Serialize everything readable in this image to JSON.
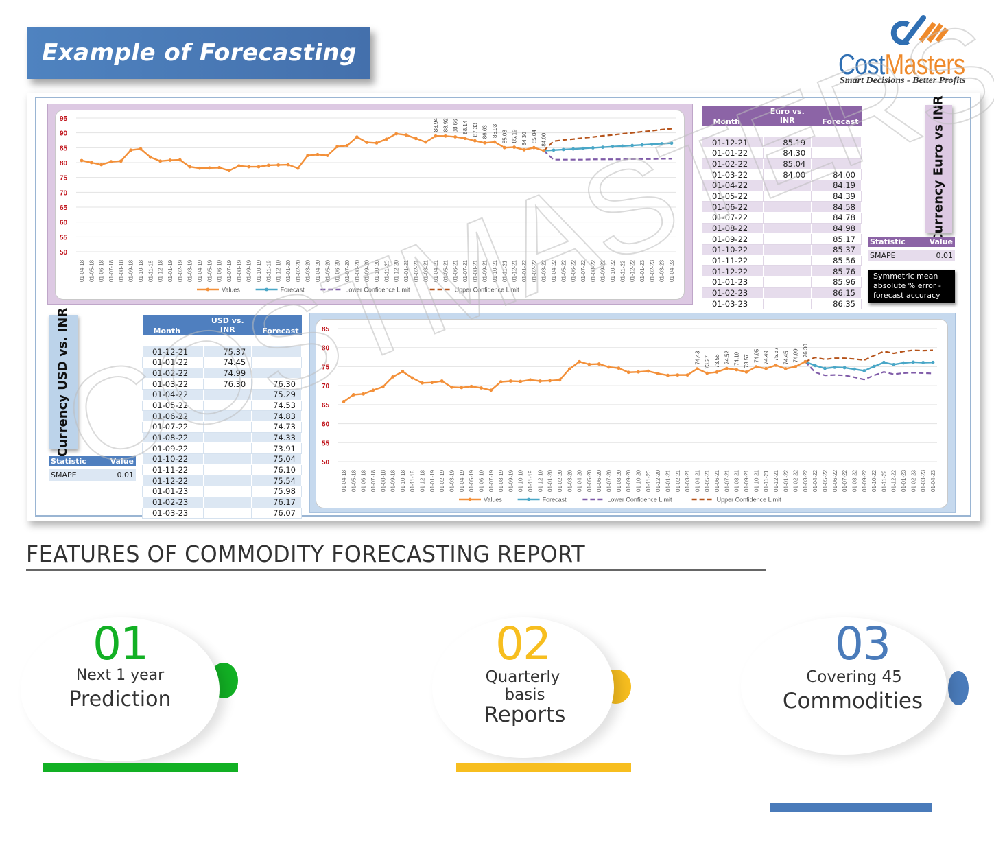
{
  "header": {
    "title": "Example of Forecasting",
    "logo": {
      "name_part1": "Cost",
      "name_part2": "Masters",
      "tagline": "Smart Decisions - Better Profits"
    }
  },
  "watermark": "COSTMASTERS",
  "euro_section": {
    "side_label": "Currency  Euro vs INR",
    "table": {
      "headers": {
        "month": "Month",
        "value": "Euro vs. INR",
        "forecast": "Forecast"
      },
      "rows": [
        {
          "month": "01-12-21",
          "value": "85.19",
          "forecast": ""
        },
        {
          "month": "01-01-22",
          "value": "84.30",
          "forecast": ""
        },
        {
          "month": "01-02-22",
          "value": "85.04",
          "forecast": ""
        },
        {
          "month": "01-03-22",
          "value": "84.00",
          "forecast": "84.00"
        },
        {
          "month": "01-04-22",
          "value": "",
          "forecast": "84.19"
        },
        {
          "month": "01-05-22",
          "value": "",
          "forecast": "84.39"
        },
        {
          "month": "01-06-22",
          "value": "",
          "forecast": "84.58"
        },
        {
          "month": "01-07-22",
          "value": "",
          "forecast": "84.78"
        },
        {
          "month": "01-08-22",
          "value": "",
          "forecast": "84.98"
        },
        {
          "month": "01-09-22",
          "value": "",
          "forecast": "85.17"
        },
        {
          "month": "01-10-22",
          "value": "",
          "forecast": "85.37"
        },
        {
          "month": "01-11-22",
          "value": "",
          "forecast": "85.56"
        },
        {
          "month": "01-12-22",
          "value": "",
          "forecast": "85.76"
        },
        {
          "month": "01-01-23",
          "value": "",
          "forecast": "85.96"
        },
        {
          "month": "01-02-23",
          "value": "",
          "forecast": "86.15"
        },
        {
          "month": "01-03-23",
          "value": "",
          "forecast": "86.35"
        }
      ]
    },
    "stat": {
      "header_stat": "Statistic",
      "header_value": "Value",
      "name": "SMAPE",
      "value": "0.01"
    },
    "note": "Symmetric mean absolute % error - forecast accuracy"
  },
  "usd_section": {
    "side_label": "Currency USD vs. INR",
    "table": {
      "headers": {
        "month": "Month",
        "value": "USD vs. INR",
        "forecast": "Forecast"
      },
      "rows": [
        {
          "month": "01-12-21",
          "value": "75.37",
          "forecast": ""
        },
        {
          "month": "01-01-22",
          "value": "74.45",
          "forecast": ""
        },
        {
          "month": "01-02-22",
          "value": "74.99",
          "forecast": ""
        },
        {
          "month": "01-03-22",
          "value": "76.30",
          "forecast": "76.30"
        },
        {
          "month": "01-04-22",
          "value": "",
          "forecast": "75.29"
        },
        {
          "month": "01-05-22",
          "value": "",
          "forecast": "74.53"
        },
        {
          "month": "01-06-22",
          "value": "",
          "forecast": "74.83"
        },
        {
          "month": "01-07-22",
          "value": "",
          "forecast": "74.73"
        },
        {
          "month": "01-08-22",
          "value": "",
          "forecast": "74.33"
        },
        {
          "month": "01-09-22",
          "value": "",
          "forecast": "73.91"
        },
        {
          "month": "01-10-22",
          "value": "",
          "forecast": "75.04"
        },
        {
          "month": "01-11-22",
          "value": "",
          "forecast": "76.10"
        },
        {
          "month": "01-12-22",
          "value": "",
          "forecast": "75.54"
        },
        {
          "month": "01-01-23",
          "value": "",
          "forecast": "75.98"
        },
        {
          "month": "01-02-23",
          "value": "",
          "forecast": "76.17"
        },
        {
          "month": "01-03-23",
          "value": "",
          "forecast": "76.07"
        }
      ]
    },
    "stat": {
      "header_stat": "Statistic",
      "header_value": "Value",
      "name": "SMAPE",
      "value": "0.01"
    }
  },
  "chart_data": [
    {
      "type": "line",
      "title": "Euro vs INR",
      "xlabel": "",
      "ylabel": "",
      "ylim": [
        50,
        95
      ],
      "yticks": [
        50,
        55,
        60,
        65,
        70,
        75,
        80,
        85,
        90,
        95
      ],
      "grid": true,
      "legend_position": "bottom",
      "x": [
        "01-04-18",
        "01-05-18",
        "01-06-18",
        "01-07-18",
        "01-08-18",
        "01-09-18",
        "01-10-18",
        "01-11-18",
        "01-12-18",
        "01-01-19",
        "01-02-19",
        "01-03-19",
        "01-04-19",
        "01-05-19",
        "01-06-19",
        "01-07-19",
        "01-08-19",
        "01-09-19",
        "01-10-19",
        "01-11-19",
        "01-12-19",
        "01-01-20",
        "01-02-20",
        "01-03-20",
        "01-04-20",
        "01-05-20",
        "01-06-20",
        "01-07-20",
        "01-08-20",
        "01-09-20",
        "01-10-20",
        "01-11-20",
        "01-12-20",
        "01-01-21",
        "01-02-21",
        "01-03-21",
        "01-04-21",
        "01-05-21",
        "01-06-21",
        "01-07-21",
        "01-08-21",
        "01-09-21",
        "01-10-21",
        "01-11-21",
        "01-12-21",
        "01-01-22",
        "01-02-22",
        "01-03-22",
        "01-04-22",
        "01-05-22",
        "01-06-22",
        "01-07-22",
        "01-08-22",
        "01-09-22",
        "01-10-22",
        "01-11-22",
        "01-12-22",
        "01-01-23",
        "01-02-23",
        "01-03-23",
        "01-04-23"
      ],
      "series": [
        {
          "name": "Values",
          "color": "#f39039",
          "values": [
            80.7,
            80.0,
            79.3,
            80.3,
            80.5,
            84.2,
            84.6,
            81.8,
            80.5,
            80.8,
            80.9,
            78.6,
            78.1,
            78.2,
            78.3,
            77.3,
            78.9,
            78.6,
            78.6,
            79.1,
            79.2,
            79.3,
            78.1,
            82.4,
            82.7,
            82.4,
            85.4,
            85.7,
            88.6,
            86.8,
            86.6,
            87.9,
            89.7,
            89.3,
            88.1,
            86.9,
            88.94,
            88.92,
            88.66,
            88.14,
            87.33,
            86.63,
            86.93,
            85.03,
            85.19,
            84.3,
            85.04,
            84.0,
            null,
            null,
            null,
            null,
            null,
            null,
            null,
            null,
            null,
            null,
            null,
            null,
            null
          ]
        },
        {
          "name": "Forecast",
          "color": "#4aa7c7",
          "values": [
            null,
            null,
            null,
            null,
            null,
            null,
            null,
            null,
            null,
            null,
            null,
            null,
            null,
            null,
            null,
            null,
            null,
            null,
            null,
            null,
            null,
            null,
            null,
            null,
            null,
            null,
            null,
            null,
            null,
            null,
            null,
            null,
            null,
            null,
            null,
            null,
            null,
            null,
            null,
            null,
            null,
            null,
            null,
            null,
            null,
            null,
            null,
            84.0,
            84.19,
            84.39,
            84.58,
            84.78,
            84.98,
            85.17,
            85.37,
            85.56,
            85.76,
            85.96,
            86.15,
            86.35,
            86.55
          ]
        },
        {
          "name": "Lower Confidence Limit",
          "color": "#7f5ba8",
          "dashed": true,
          "values": [
            null,
            null,
            null,
            null,
            null,
            null,
            null,
            null,
            null,
            null,
            null,
            null,
            null,
            null,
            null,
            null,
            null,
            null,
            null,
            null,
            null,
            null,
            null,
            null,
            null,
            null,
            null,
            null,
            null,
            null,
            null,
            null,
            null,
            null,
            null,
            null,
            null,
            null,
            null,
            null,
            null,
            null,
            null,
            null,
            null,
            null,
            null,
            84.0,
            81.0,
            81.0,
            81.0,
            81.0,
            81.1,
            81.1,
            81.1,
            81.1,
            81.2,
            81.2,
            81.2,
            81.3,
            81.3
          ]
        },
        {
          "name": "Upper Confidence Limit",
          "color": "#b5531a",
          "dashed": true,
          "values": [
            null,
            null,
            null,
            null,
            null,
            null,
            null,
            null,
            null,
            null,
            null,
            null,
            null,
            null,
            null,
            null,
            null,
            null,
            null,
            null,
            null,
            null,
            null,
            null,
            null,
            null,
            null,
            null,
            null,
            null,
            null,
            null,
            null,
            null,
            null,
            null,
            null,
            null,
            null,
            null,
            null,
            null,
            null,
            null,
            null,
            null,
            null,
            84.0,
            87.2,
            87.6,
            87.9,
            88.3,
            88.6,
            89.0,
            89.3,
            89.7,
            90.0,
            90.4,
            90.7,
            91.1,
            91.4
          ]
        }
      ],
      "annotations": [
        {
          "x": "01-04-21",
          "label": "88.94"
        },
        {
          "x": "01-05-21",
          "label": "88.92"
        },
        {
          "x": "01-06-21",
          "label": "88.66"
        },
        {
          "x": "01-07-21",
          "label": "88.14"
        },
        {
          "x": "01-08-21",
          "label": "87.33"
        },
        {
          "x": "01-09-21",
          "label": "86.63"
        },
        {
          "x": "01-10-21",
          "label": "86.93"
        },
        {
          "x": "01-11-21",
          "label": "85.03"
        },
        {
          "x": "01-12-21",
          "label": "85.19"
        },
        {
          "x": "01-01-22",
          "label": "84.30"
        },
        {
          "x": "01-02-22",
          "label": "85.04"
        },
        {
          "x": "01-03-22",
          "label": "84.00"
        }
      ]
    },
    {
      "type": "line",
      "title": "USD vs INR",
      "xlabel": "",
      "ylabel": "",
      "ylim": [
        50,
        85
      ],
      "yticks": [
        50,
        55,
        60,
        65,
        70,
        75,
        80,
        85
      ],
      "grid": true,
      "legend_position": "bottom",
      "x": [
        "01-04-18",
        "01-05-18",
        "01-06-18",
        "01-07-18",
        "01-08-18",
        "01-09-18",
        "01-10-18",
        "01-11-18",
        "01-12-18",
        "01-01-19",
        "01-02-19",
        "01-03-19",
        "01-04-19",
        "01-05-19",
        "01-06-19",
        "01-07-19",
        "01-08-19",
        "01-09-19",
        "01-10-19",
        "01-11-19",
        "01-12-19",
        "01-01-20",
        "01-02-20",
        "01-03-20",
        "01-04-20",
        "01-05-20",
        "01-06-20",
        "01-07-20",
        "01-08-20",
        "01-09-20",
        "01-10-20",
        "01-11-20",
        "01-12-20",
        "01-01-21",
        "01-02-21",
        "01-03-21",
        "01-04-21",
        "01-05-21",
        "01-06-21",
        "01-07-21",
        "01-08-21",
        "01-09-21",
        "01-10-21",
        "01-11-21",
        "01-12-21",
        "01-01-22",
        "01-02-22",
        "01-03-22",
        "01-04-22",
        "01-05-22",
        "01-06-22",
        "01-07-22",
        "01-08-22",
        "01-09-22",
        "01-10-22",
        "01-11-22",
        "01-12-22",
        "01-01-23",
        "01-02-23",
        "01-03-23",
        "01-04-23"
      ],
      "series": [
        {
          "name": "Values",
          "color": "#f39039",
          "values": [
            65.8,
            67.6,
            67.8,
            68.8,
            69.7,
            72.3,
            73.7,
            72.0,
            70.7,
            70.8,
            71.2,
            69.6,
            69.5,
            69.8,
            69.4,
            68.8,
            71.0,
            71.2,
            71.1,
            71.5,
            71.2,
            71.3,
            71.5,
            74.4,
            76.3,
            75.6,
            75.7,
            74.9,
            74.6,
            73.5,
            73.6,
            73.8,
            73.2,
            72.7,
            72.8,
            72.8,
            74.43,
            73.27,
            73.56,
            74.52,
            74.19,
            73.57,
            74.95,
            74.49,
            75.37,
            74.45,
            74.99,
            76.3,
            null,
            null,
            null,
            null,
            null,
            null,
            null,
            null,
            null,
            null,
            null,
            null,
            null
          ]
        },
        {
          "name": "Forecast",
          "color": "#4aa7c7",
          "values": [
            null,
            null,
            null,
            null,
            null,
            null,
            null,
            null,
            null,
            null,
            null,
            null,
            null,
            null,
            null,
            null,
            null,
            null,
            null,
            null,
            null,
            null,
            null,
            null,
            null,
            null,
            null,
            null,
            null,
            null,
            null,
            null,
            null,
            null,
            null,
            null,
            null,
            null,
            null,
            null,
            null,
            null,
            null,
            null,
            null,
            null,
            null,
            76.3,
            75.29,
            74.53,
            74.83,
            74.73,
            74.33,
            73.91,
            75.04,
            76.1,
            75.54,
            75.98,
            76.17,
            76.07,
            76.1
          ]
        },
        {
          "name": "Lower Confidence Limit",
          "color": "#7f5ba8",
          "dashed": true,
          "values": [
            null,
            null,
            null,
            null,
            null,
            null,
            null,
            null,
            null,
            null,
            null,
            null,
            null,
            null,
            null,
            null,
            null,
            null,
            null,
            null,
            null,
            null,
            null,
            null,
            null,
            null,
            null,
            null,
            null,
            null,
            null,
            null,
            null,
            null,
            null,
            null,
            null,
            null,
            null,
            null,
            null,
            null,
            null,
            null,
            null,
            null,
            null,
            76.3,
            73.5,
            72.7,
            72.8,
            72.7,
            72.2,
            71.6,
            72.7,
            73.6,
            73.0,
            73.3,
            73.4,
            73.3,
            73.2
          ]
        },
        {
          "name": "Upper Confidence Limit",
          "color": "#b5531a",
          "dashed": true,
          "values": [
            null,
            null,
            null,
            null,
            null,
            null,
            null,
            null,
            null,
            null,
            null,
            null,
            null,
            null,
            null,
            null,
            null,
            null,
            null,
            null,
            null,
            null,
            null,
            null,
            null,
            null,
            null,
            null,
            null,
            null,
            null,
            null,
            null,
            null,
            null,
            null,
            null,
            null,
            null,
            null,
            null,
            null,
            null,
            null,
            null,
            null,
            null,
            76.3,
            77.4,
            76.9,
            77.2,
            77.2,
            77.0,
            76.7,
            77.9,
            79.0,
            78.5,
            79.0,
            79.3,
            79.2,
            79.3
          ]
        }
      ],
      "annotations": [
        {
          "x": "01-04-21",
          "label": "74.43"
        },
        {
          "x": "01-05-21",
          "label": "73.27"
        },
        {
          "x": "01-06-21",
          "label": "73.56"
        },
        {
          "x": "01-07-21",
          "label": "74.52"
        },
        {
          "x": "01-08-21",
          "label": "74.19"
        },
        {
          "x": "01-09-21",
          "label": "73.57"
        },
        {
          "x": "01-10-21",
          "label": "74.95"
        },
        {
          "x": "01-11-21",
          "label": "74.49"
        },
        {
          "x": "01-12-21",
          "label": "75.37"
        },
        {
          "x": "01-01-22",
          "label": "74.45"
        },
        {
          "x": "01-02-22",
          "label": "74.99"
        },
        {
          "x": "01-03-22",
          "label": "76.30"
        }
      ]
    }
  ],
  "features": {
    "heading": "FEATURES OF COMMODITY FORECASTING REPORT",
    "items": [
      {
        "number": "01",
        "line1": "Next 1 year",
        "line2": "Prediction",
        "line3": "",
        "color": "#12b024"
      },
      {
        "number": "02",
        "line1": "Quarterly",
        "line2": "basis",
        "line3": "Reports",
        "color": "#f7be1f"
      },
      {
        "number": "03",
        "line1": "Covering 45",
        "line2": "Commodities",
        "line3": "",
        "color": "#4a7bba"
      }
    ]
  }
}
